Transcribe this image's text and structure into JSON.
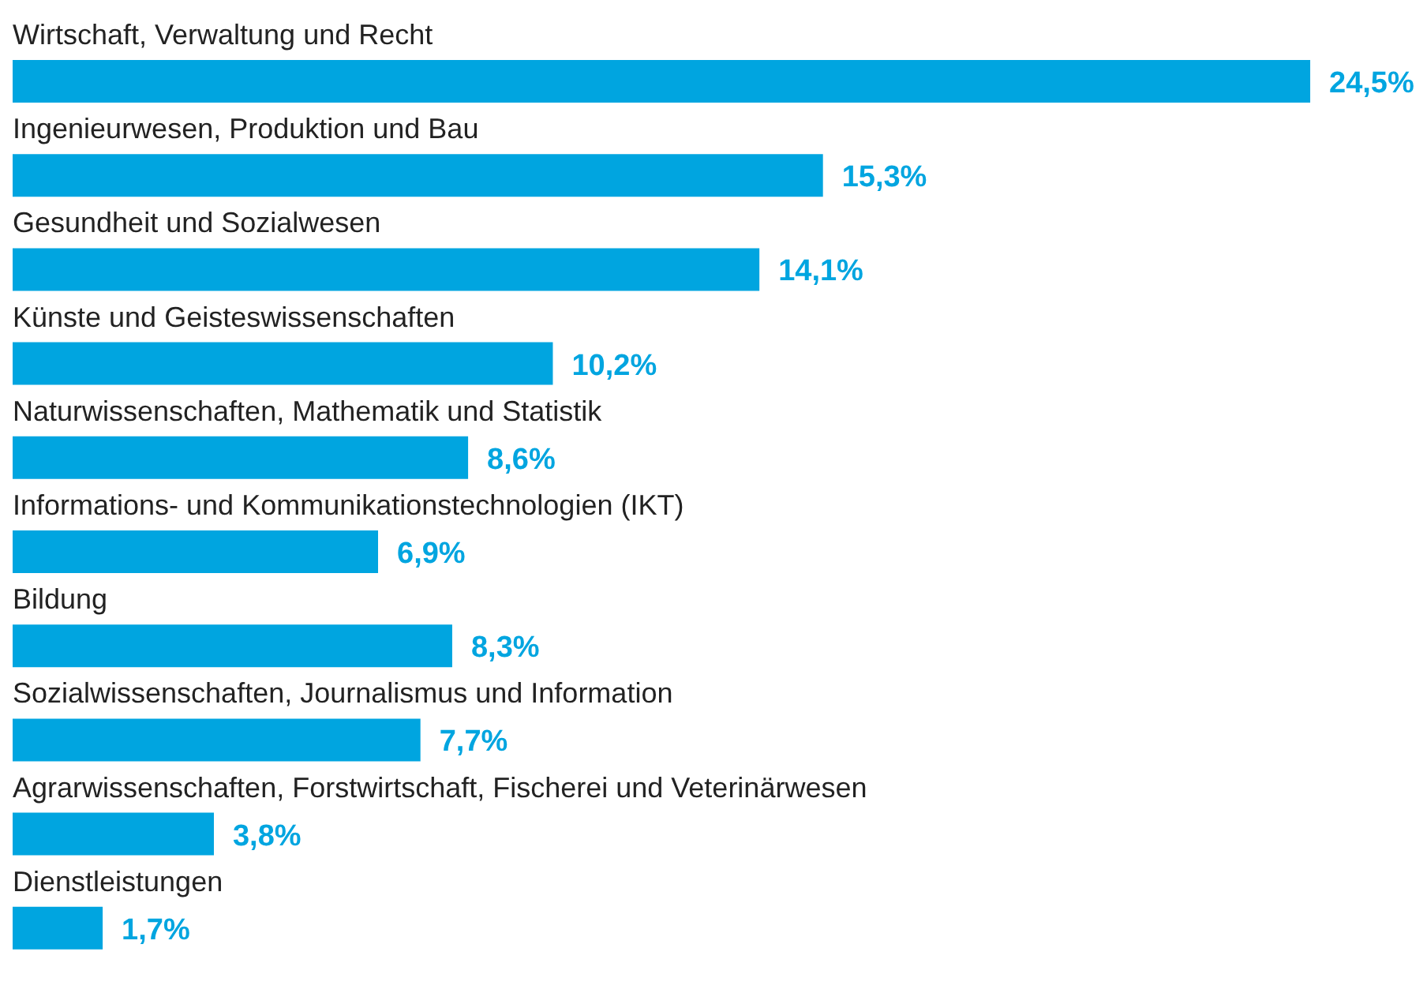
{
  "chart_data": {
    "type": "bar",
    "orientation": "horizontal",
    "categories": [
      "Wirtschaft, Verwaltung und Recht",
      "Ingenieurwesen, Produktion und Bau",
      "Gesundheit und Sozialwesen",
      "Künste und Geisteswissenschaften",
      "Naturwissenschaften, Mathematik und Statistik",
      "Informations- und Kommunikationstechnologien (IKT)",
      "Bildung",
      "Sozialwissenschaften, Journalismus und Information",
      "Agrarwissenschaften, Forstwirtschaft, Fischerei und Veterinärwesen",
      "Dienstleistungen"
    ],
    "values": [
      24.5,
      15.3,
      14.1,
      10.2,
      8.6,
      6.9,
      8.3,
      7.7,
      3.8,
      1.7
    ],
    "value_labels": [
      "24,5%",
      "15,3%",
      "14,1%",
      "10,2%",
      "8,6%",
      "6,9%",
      "8,3%",
      "7,7%",
      "3,8%",
      "1,7%"
    ],
    "color": "#00a5e0",
    "grid": false
  }
}
